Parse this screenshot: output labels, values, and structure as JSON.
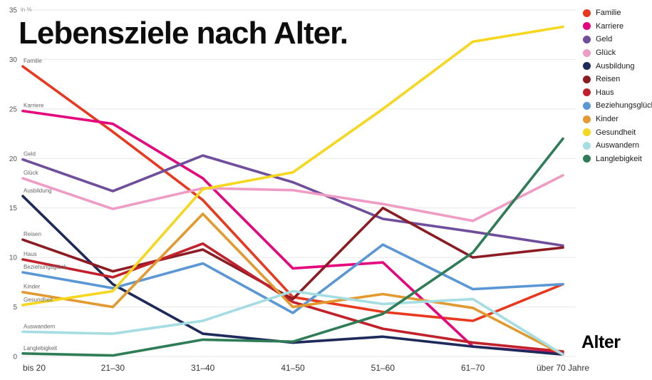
{
  "title": "Lebensziele nach Alter.",
  "y_axis_unit": "in %",
  "x_axis_title": "Alter",
  "chart_data": {
    "type": "line",
    "title": "Lebensziele nach Alter.",
    "xlabel": "Alter",
    "ylabel": "in %",
    "ylim": [
      0,
      35
    ],
    "y_tick_step": 5,
    "grid": "horizontal",
    "legend_position": "top-right",
    "categories": [
      "bis 20",
      "21–30",
      "31–40",
      "41–50",
      "51–60",
      "61–70",
      "über 70 Jahre"
    ],
    "series": [
      {
        "name": "Familie",
        "color": "#e8391f",
        "values": [
          29.3,
          22.7,
          15.8,
          6.0,
          4.5,
          3.6,
          7.3
        ]
      },
      {
        "name": "Karriere",
        "color": "#e5067e",
        "values": [
          24.8,
          23.5,
          18.0,
          8.9,
          9.5,
          1.0,
          0.3
        ]
      },
      {
        "name": "Geld",
        "color": "#6f4e9c",
        "values": [
          19.9,
          16.7,
          20.3,
          17.6,
          13.9,
          12.6,
          11.2
        ]
      },
      {
        "name": "Glück",
        "color": "#ef9cc5",
        "values": [
          18.0,
          14.9,
          17.0,
          16.8,
          15.4,
          13.7,
          18.3
        ]
      },
      {
        "name": "Ausbildung",
        "color": "#1e2a5a",
        "values": [
          16.2,
          7.3,
          2.3,
          1.4,
          2.0,
          1.0,
          0.2
        ]
      },
      {
        "name": "Reisen",
        "color": "#8c1c24",
        "values": [
          11.8,
          8.6,
          10.8,
          5.8,
          15.0,
          10.0,
          11.0
        ]
      },
      {
        "name": "Haus",
        "color": "#c0212b",
        "values": [
          9.8,
          8.0,
          11.4,
          5.5,
          2.8,
          1.4,
          0.5
        ]
      },
      {
        "name": "Beziehungsglück",
        "color": "#5b97d5",
        "values": [
          8.5,
          6.9,
          9.4,
          4.4,
          11.3,
          6.8,
          7.3
        ]
      },
      {
        "name": "Kinder",
        "color": "#e2992f",
        "values": [
          6.5,
          5.0,
          14.4,
          5.0,
          6.3,
          4.9,
          0.2
        ]
      },
      {
        "name": "Gesundheit",
        "color": "#f6d71f",
        "values": [
          5.2,
          6.6,
          16.9,
          18.6,
          25.0,
          31.8,
          33.3
        ]
      },
      {
        "name": "Auswandern",
        "color": "#a5dde2",
        "values": [
          2.5,
          2.3,
          3.6,
          6.6,
          5.3,
          5.8,
          0.2
        ]
      },
      {
        "name": "Langlebigkeit",
        "color": "#2f7d57",
        "values": [
          0.3,
          0.1,
          1.7,
          1.5,
          4.3,
          10.5,
          22.0
        ]
      }
    ]
  }
}
